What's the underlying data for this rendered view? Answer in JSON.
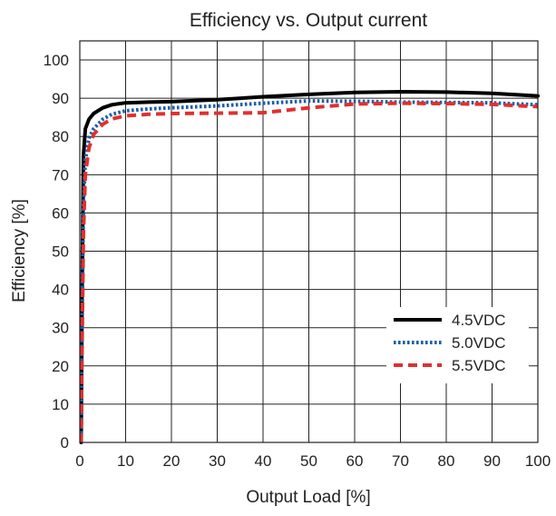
{
  "chart_data": {
    "type": "line",
    "title": "Efficiency vs. Output current",
    "xlabel": "Output Load [%]",
    "ylabel": "Efficiency [%]",
    "xlim": [
      0,
      100
    ],
    "ylim": [
      0,
      105
    ],
    "xticks": [
      0,
      10,
      20,
      30,
      40,
      50,
      60,
      70,
      80,
      90,
      100
    ],
    "yticks": [
      0,
      10,
      20,
      30,
      40,
      50,
      60,
      70,
      80,
      90,
      100
    ],
    "grid": true,
    "legend_position": "bottom-right",
    "series": [
      {
        "name": "4.5VDC",
        "color": "#000000",
        "style": "solid",
        "x": [
          0.3,
          0.5,
          0.8,
          1.2,
          2,
          3,
          5,
          7,
          10,
          15,
          20,
          30,
          40,
          50,
          60,
          70,
          80,
          90,
          100
        ],
        "y": [
          0,
          40,
          75,
          82,
          84.5,
          86,
          87.5,
          88.3,
          88.8,
          89.0,
          89.1,
          89.6,
          90.4,
          91.0,
          91.5,
          91.7,
          91.6,
          91.3,
          90.6
        ]
      },
      {
        "name": "5.0VDC",
        "color": "#1a5fa8",
        "style": "dotted",
        "x": [
          0.3,
          0.5,
          0.8,
          1.2,
          2,
          3,
          5,
          7,
          10,
          15,
          20,
          30,
          40,
          50,
          60,
          70,
          80,
          90,
          100
        ],
        "y": [
          0,
          30,
          62,
          74,
          79.5,
          82,
          84.5,
          85.8,
          86.7,
          87.2,
          87.5,
          88.0,
          88.7,
          89.3,
          89.2,
          89.0,
          88.9,
          88.8,
          88.3
        ]
      },
      {
        "name": "5.5VDC",
        "color": "#e03030",
        "style": "dashed",
        "x": [
          0.3,
          0.5,
          0.8,
          1.2,
          2,
          3,
          5,
          7,
          10,
          15,
          20,
          30,
          40,
          50,
          60,
          70,
          80,
          90,
          100
        ],
        "y": [
          0,
          25,
          55,
          70,
          77,
          80.5,
          83.2,
          84.6,
          85.4,
          85.8,
          86.0,
          86.1,
          86.2,
          87.5,
          88.5,
          88.7,
          88.6,
          88.4,
          87.8
        ]
      }
    ]
  }
}
